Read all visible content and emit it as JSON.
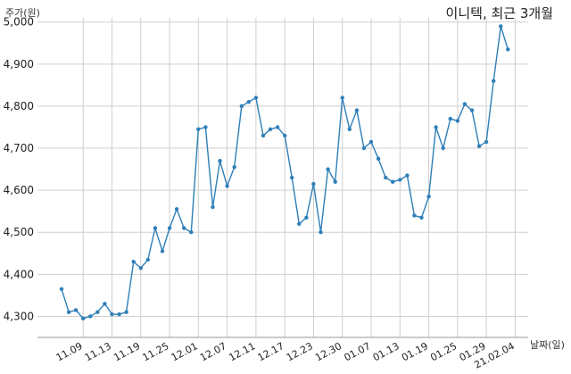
{
  "chart_data": {
    "type": "line",
    "title": "이니텍, 최근 3개월",
    "ylabel": "주가(원)",
    "xlabel": "날짜(일)",
    "ylim": [
      4250,
      5010
    ],
    "yticks": [
      4300,
      4400,
      4500,
      4600,
      4700,
      4800,
      4900,
      5000
    ],
    "ytick_labels": [
      "4,300",
      "4,400",
      "4,500",
      "4,600",
      "4,700",
      "4,800",
      "4,900",
      "5,000"
    ],
    "xtick_labels": [
      "11.09",
      "11.13",
      "11.19",
      "11.25",
      "12.01",
      "12.07",
      "12.11",
      "12.17",
      "12.23",
      "12.30",
      "01.07",
      "01.13",
      "01.19",
      "01.25",
      "01.29",
      "21.02.04"
    ],
    "xtick_positions": [
      3,
      7,
      11,
      15,
      19,
      23,
      27,
      31,
      35,
      39,
      43,
      47,
      51,
      55,
      59,
      63
    ],
    "grid": true,
    "line_color": "#2e7fb8",
    "series": [
      {
        "values": [
          4365,
          4310,
          4315,
          4295,
          4300,
          4310,
          4330,
          4305,
          4305,
          4310,
          4430,
          4415,
          4435,
          4510,
          4455,
          4510,
          4555,
          4510,
          4500,
          4745,
          4750,
          4560,
          4670,
          4610,
          4655,
          4800,
          4810,
          4820,
          4730,
          4745,
          4750,
          4730,
          4630,
          4520,
          4535,
          4615,
          4500,
          4650,
          4620,
          4820,
          4745,
          4790,
          4700,
          4715,
          4675,
          4630,
          4620,
          4625,
          4635,
          4540,
          4535,
          4585,
          4750,
          4700,
          4770,
          4765,
          4805,
          4790,
          4705,
          4715,
          4860,
          4990,
          4935
        ]
      }
    ]
  }
}
